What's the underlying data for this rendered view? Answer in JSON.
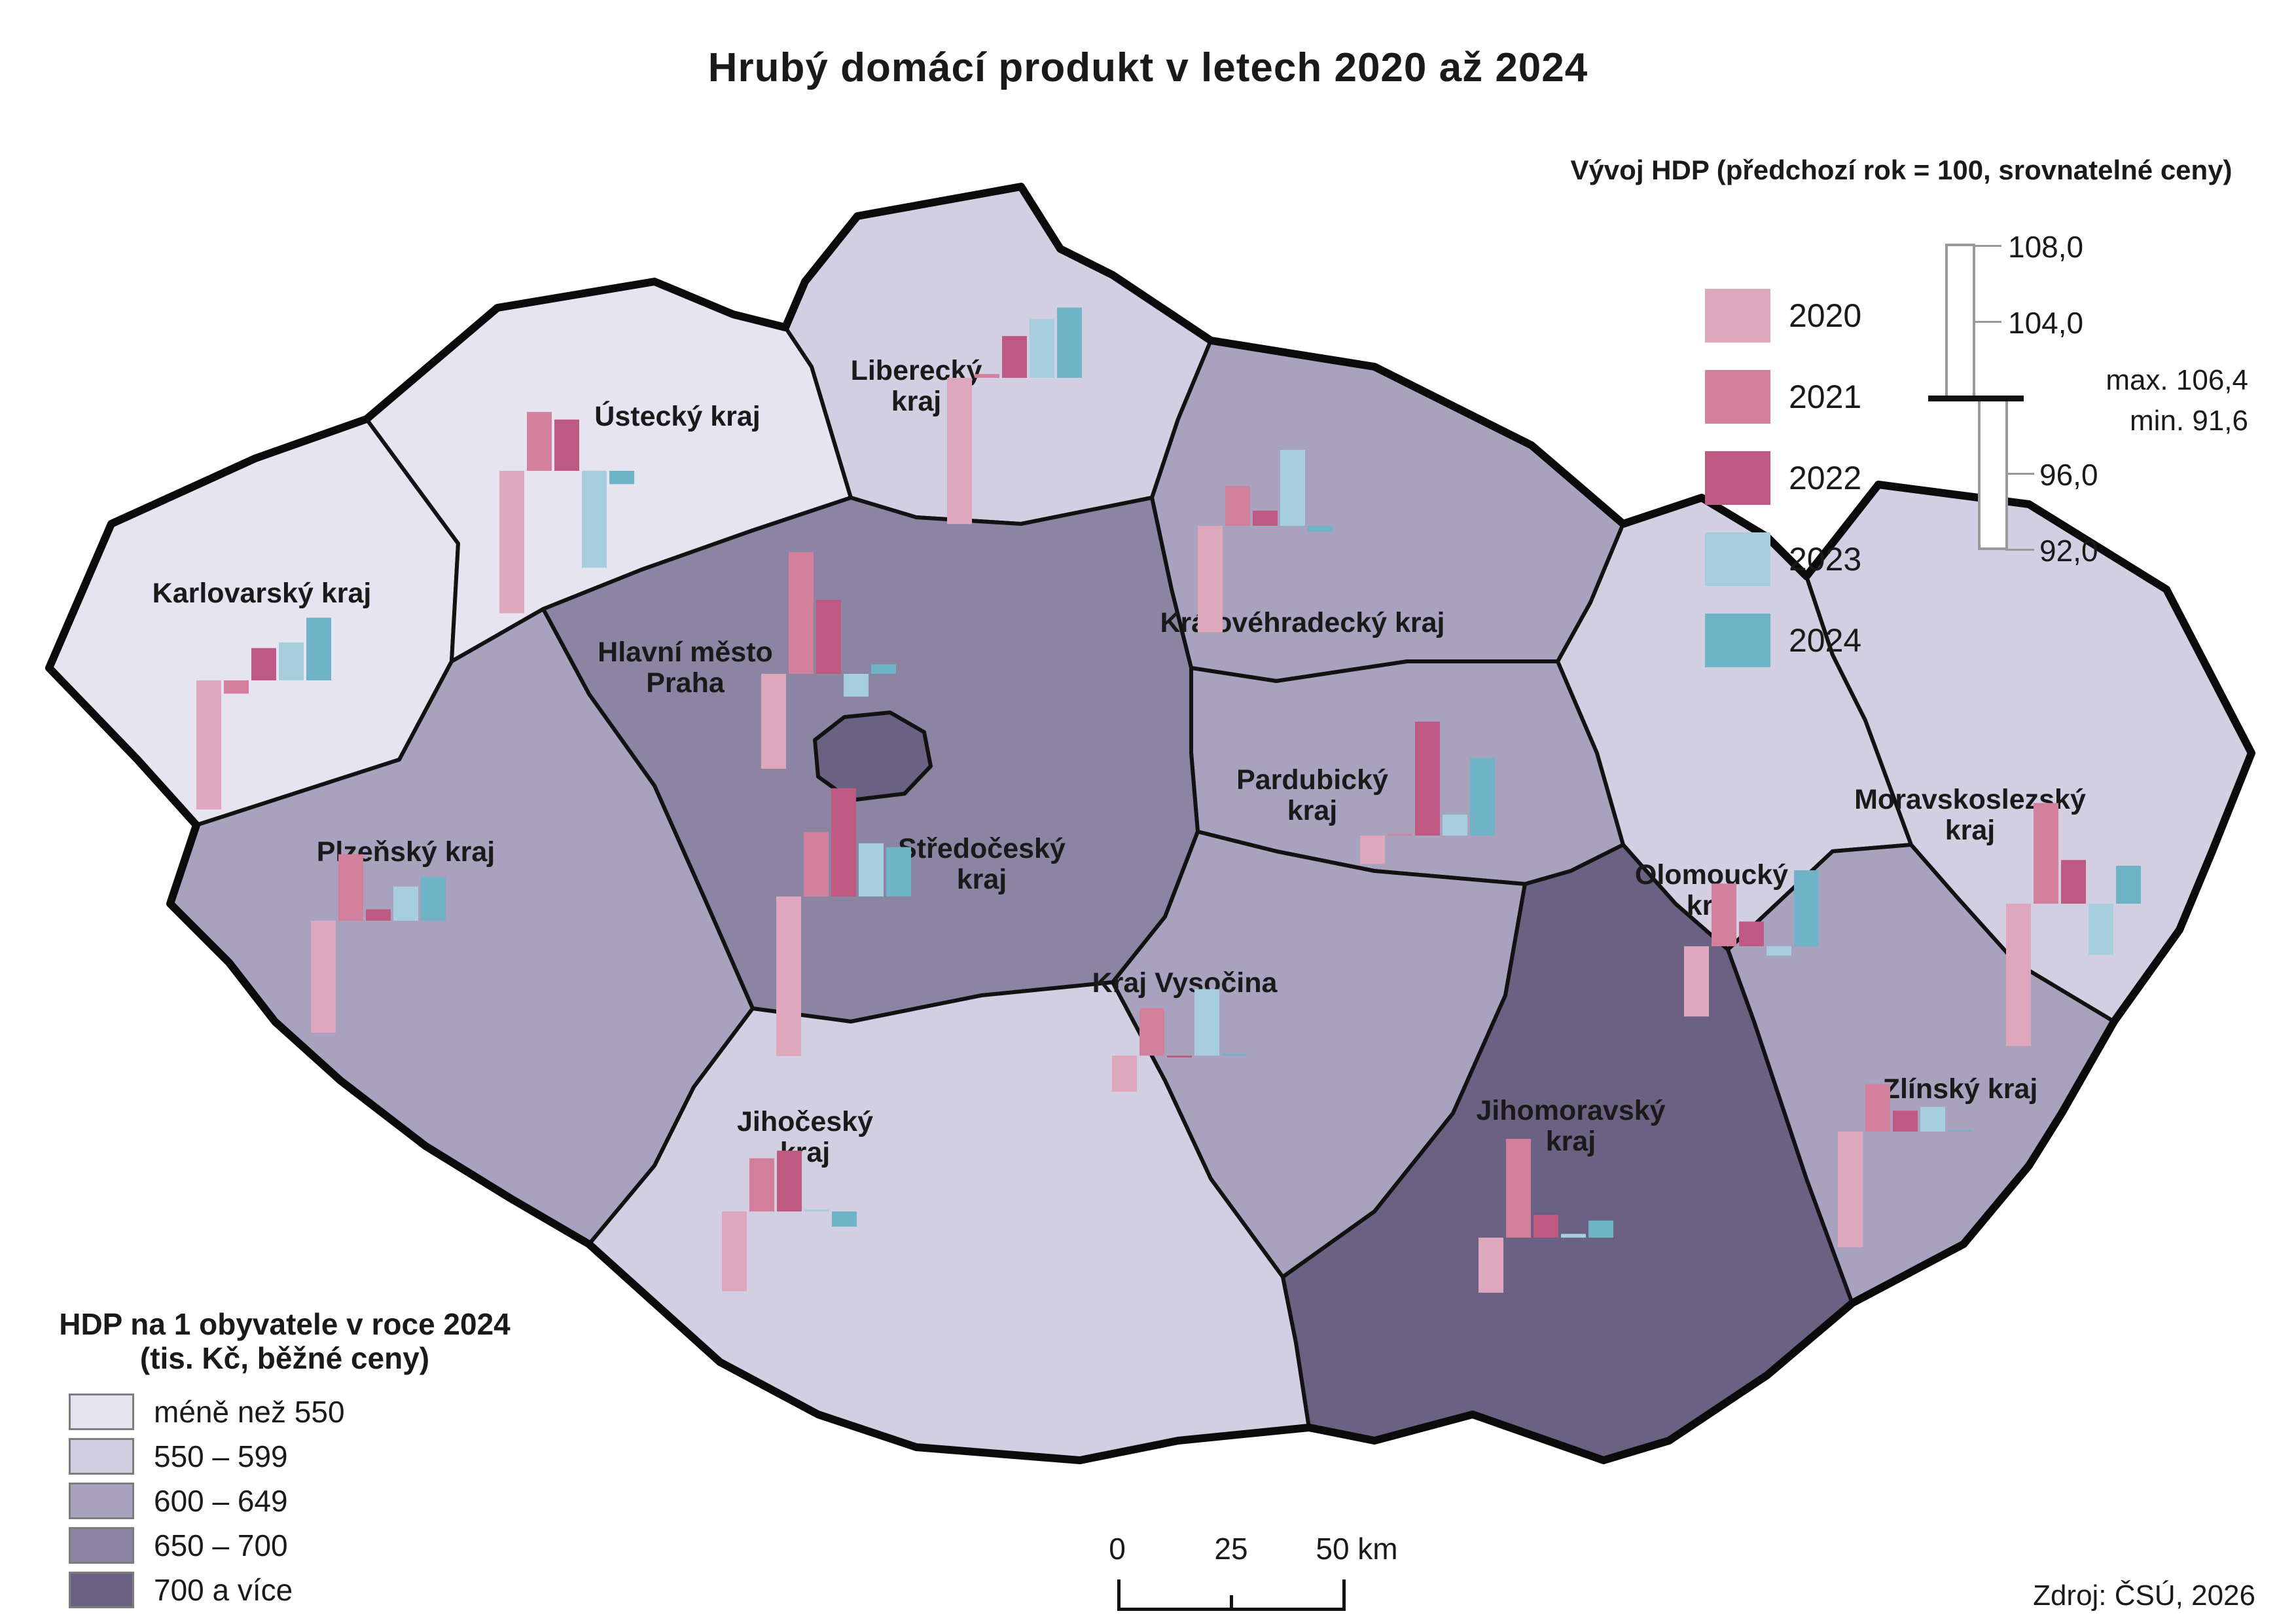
{
  "title": "Hrubý domácí produkt v letech 2020 až 2024",
  "source": "Zdroj: ČSÚ, 2026",
  "scalebar": {
    "labels": [
      "0",
      "25",
      "50 km"
    ]
  },
  "map_legend": {
    "title_line1": "HDP na 1 obyvatele v roce 2024",
    "title_line2": "(tis. Kč, běžné ceny)",
    "classes": [
      {
        "label": "méně než 550",
        "color": "#e7e4f1"
      },
      {
        "label": "550 – 599",
        "color": "#d3cfe2"
      },
      {
        "label": "600 – 649",
        "color": "#a9a2be"
      },
      {
        "label": "650 – 700",
        "color": "#8c84a3"
      },
      {
        "label": "700 a více",
        "color": "#6a6183"
      }
    ]
  },
  "chart_legend": {
    "title": "Vývoj HDP (předchozí rok = 100, srovnatelné ceny)",
    "years": [
      {
        "label": "2020",
        "color": "#dfa7bb"
      },
      {
        "label": "2021",
        "color": "#d2809c"
      },
      {
        "label": "2022",
        "color": "#be5a82"
      },
      {
        "label": "2023",
        "color": "#a7cedc"
      },
      {
        "label": "2024",
        "color": "#6fb3c6"
      }
    ],
    "scale": {
      "ticks": [
        {
          "label": "108,0",
          "value": 108
        },
        {
          "label": "104,0",
          "value": 104
        },
        {
          "label": "96,0",
          "value": 96
        },
        {
          "label": "92,0",
          "value": 92
        }
      ],
      "baseline_value": 100,
      "max_label": "max. 106,4",
      "min_label": "min. 91,6"
    }
  },
  "chart_data": {
    "type": "map+bar",
    "title": "Hrubý domácí produkt v letech 2020 až 2024",
    "index_definition": "předchozí rok = 100, srovnatelné ceny",
    "choropleth_variable": "HDP na 1 obyvatele v roce 2024 (tis. Kč, běžné ceny)",
    "years": [
      2020,
      2021,
      2022,
      2023,
      2024
    ],
    "max": 106.4,
    "min": 91.6,
    "regions": [
      {
        "id": "karlovarsky",
        "name": "Karlovarský kraj",
        "name_lines": [
          "Karlovarský kraj"
        ],
        "per_capita_class": "méně než 550",
        "values": [
          93.2,
          99.3,
          101.7,
          102.0,
          103.3
        ]
      },
      {
        "id": "ustecky",
        "name": "Ústecký kraj",
        "name_lines": [
          "Ústecký kraj"
        ],
        "per_capita_class": "méně než 550",
        "values": [
          92.5,
          103.1,
          102.7,
          94.9,
          99.3
        ]
      },
      {
        "id": "liberecky",
        "name": "Liberecký kraj",
        "name_lines": [
          "Liberecký",
          "kraj"
        ],
        "per_capita_class": "550 – 599",
        "values": [
          92.3,
          100.2,
          102.2,
          103.1,
          103.7
        ]
      },
      {
        "id": "kralovehradecky",
        "name": "Královéhradecký kraj",
        "name_lines": [
          "Královéhradecký kraj"
        ],
        "per_capita_class": "600 – 649",
        "values": [
          94.4,
          102.1,
          100.8,
          104.0,
          99.7
        ]
      },
      {
        "id": "pardubicky",
        "name": "Pardubický kraj",
        "name_lines": [
          "Pardubický",
          "kraj"
        ],
        "per_capita_class": "600 – 649",
        "values": [
          98.5,
          100.0,
          106.0,
          101.1,
          104.1
        ]
      },
      {
        "id": "praha",
        "name": "Hlavní město Praha",
        "name_lines": [
          "Hlavní město",
          "Praha"
        ],
        "per_capita_class": "700 a více",
        "values": [
          95.0,
          106.4,
          103.9,
          98.8,
          100.5
        ]
      },
      {
        "id": "stredocesky",
        "name": "Středočeský kraj",
        "name_lines": [
          "Středočeský",
          "kraj"
        ],
        "per_capita_class": "650 – 700",
        "values": [
          91.6,
          103.4,
          105.7,
          102.8,
          102.6
        ]
      },
      {
        "id": "plzensky",
        "name": "Plzeňský kraj",
        "name_lines": [
          "Plzeňský kraj"
        ],
        "per_capita_class": "600 – 649",
        "values": [
          94.1,
          103.5,
          100.6,
          101.8,
          102.3
        ]
      },
      {
        "id": "jihocesky",
        "name": "Jihočeský kraj",
        "name_lines": [
          "Jihočeský",
          "kraj"
        ],
        "per_capita_class": "550 – 599",
        "values": [
          95.8,
          102.8,
          103.2,
          100.1,
          99.2
        ]
      },
      {
        "id": "vysocina",
        "name": "Kraj Vysočina",
        "name_lines": [
          "Kraj Vysočina"
        ],
        "per_capita_class": "600 – 649",
        "values": [
          98.1,
          102.5,
          99.9,
          103.5,
          100.1
        ]
      },
      {
        "id": "jihomoravsky",
        "name": "Jihomoravský kraj",
        "name_lines": [
          "Jihomoravský",
          "kraj"
        ],
        "per_capita_class": "700 a více",
        "values": [
          97.1,
          105.2,
          101.2,
          100.2,
          100.9
        ]
      },
      {
        "id": "olomoucky",
        "name": "Olomoucký kraj",
        "name_lines": [
          "Olomoucký",
          "kraj"
        ],
        "per_capita_class": "550 – 599",
        "values": [
          96.3,
          103.3,
          101.3,
          99.5,
          104.0
        ]
      },
      {
        "id": "zlinsky",
        "name": "Zlínský kraj",
        "name_lines": [
          "Zlínský kraj"
        ],
        "per_capita_class": "600 – 649",
        "values": [
          93.9,
          102.5,
          101.1,
          101.3,
          100.0
        ]
      },
      {
        "id": "moravskoslezsky",
        "name": "Moravskoslezský kraj",
        "name_lines": [
          "Moravskoslezský",
          "kraj"
        ],
        "per_capita_class": "550 – 599",
        "values": [
          92.5,
          105.3,
          102.3,
          97.3,
          102.0
        ]
      }
    ]
  }
}
